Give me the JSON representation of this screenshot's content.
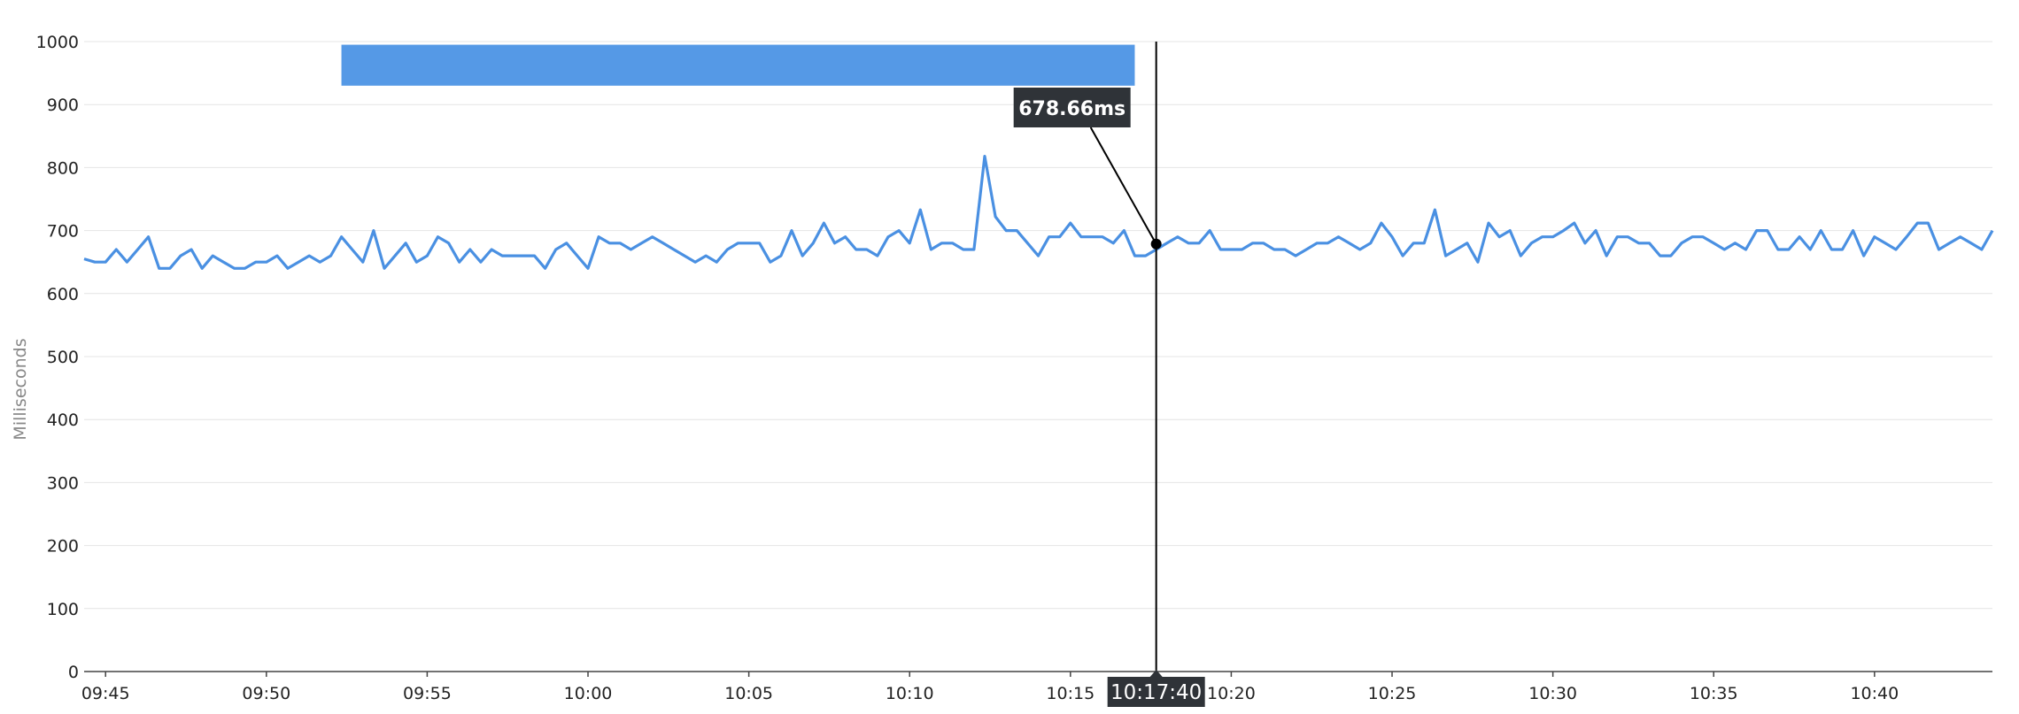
{
  "chart_data": {
    "type": "line",
    "ylabel": "Milliseconds",
    "ylim": [
      0,
      1000
    ],
    "yticks": [
      0,
      100,
      200,
      300,
      400,
      500,
      600,
      700,
      800,
      900,
      1000
    ],
    "xlim": [
      "09:44:20",
      "10:43:40"
    ],
    "xticks": [
      "09:45",
      "09:50",
      "09:55",
      "10:00",
      "10:05",
      "10:10",
      "10:15",
      "10:20",
      "10:25",
      "10:30",
      "10:35",
      "10:40"
    ],
    "grid": true,
    "colors": {
      "line": "#4a90e2",
      "band": "#5599e6",
      "tooltip_bg": "#2f3338",
      "cursor": "#000000"
    },
    "highlight_band": {
      "start": "09:52:20",
      "end": "10:17:00",
      "y_from": 930,
      "y_to": 995
    },
    "cursor": {
      "time": "10:17:40",
      "time_label": "10:17:40",
      "value": 678.66,
      "value_label": "678.66ms"
    },
    "series": [
      {
        "values": [
          655,
          650,
          650,
          670,
          650,
          670,
          690,
          640,
          640,
          660,
          670,
          640,
          660,
          650,
          640,
          640,
          650,
          650,
          660,
          640,
          650,
          660,
          650,
          660,
          690,
          670,
          650,
          700,
          640,
          660,
          680,
          650,
          660,
          690,
          680,
          650,
          670,
          650,
          670,
          660,
          660,
          660,
          660,
          640,
          670,
          680,
          660,
          640,
          690,
          680,
          680,
          670,
          680,
          690,
          680,
          670,
          660,
          650,
          660,
          650,
          670,
          680,
          680,
          680,
          650,
          660,
          700,
          660,
          680,
          712,
          680,
          690,
          670,
          670,
          660,
          690,
          700,
          680,
          733,
          670,
          680,
          680,
          670,
          670,
          818,
          722,
          700,
          700,
          680,
          660,
          690,
          690,
          712,
          690,
          690,
          690,
          680,
          700,
          660,
          660,
          670,
          680,
          690,
          680,
          680,
          700,
          670,
          670,
          670,
          680,
          680,
          670,
          670,
          660,
          670,
          680,
          680,
          690,
          680,
          670,
          680,
          712,
          690,
          660,
          680,
          680,
          733,
          660,
          670,
          680,
          650,
          712,
          690,
          700,
          660,
          680,
          690,
          690,
          700,
          712,
          680,
          700,
          660,
          690,
          690,
          680,
          680,
          660,
          660,
          680,
          690,
          690,
          680,
          670,
          680,
          670,
          700,
          700,
          670,
          670,
          690,
          670,
          700,
          670,
          670,
          700,
          660,
          690,
          680,
          670,
          690,
          712,
          712,
          670,
          680,
          690,
          680,
          670,
          700
        ]
      }
    ]
  }
}
